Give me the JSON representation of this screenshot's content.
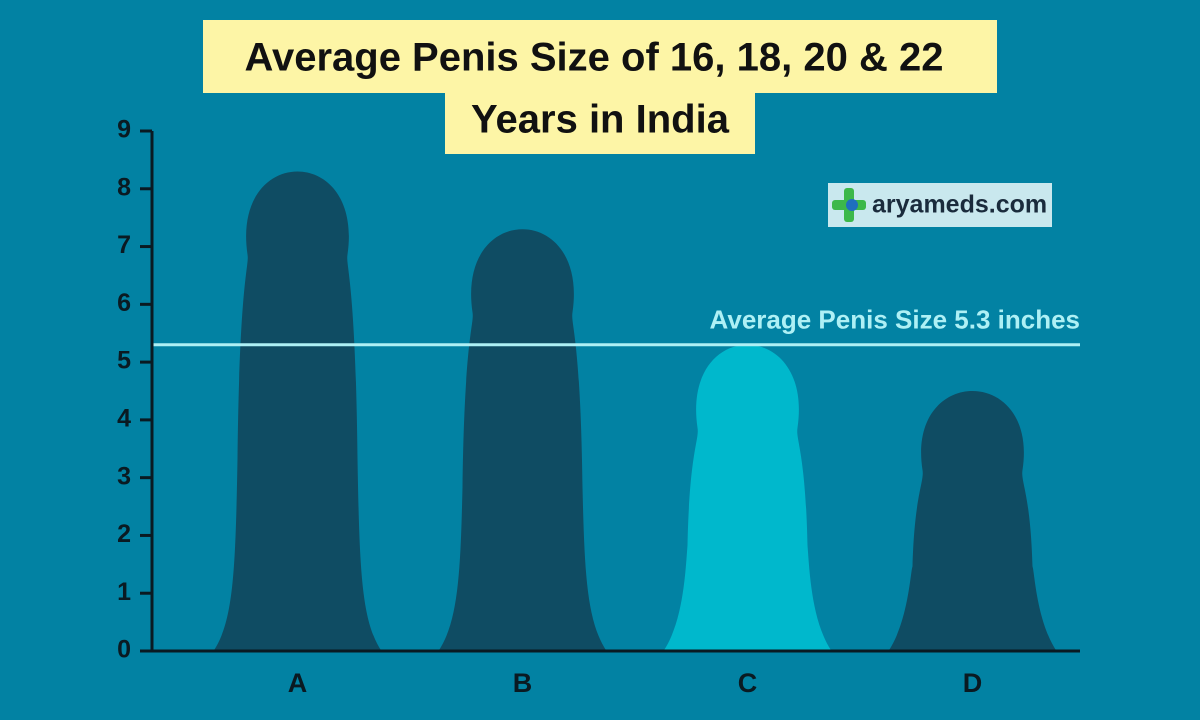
{
  "chart_data": {
    "type": "bar",
    "title": [
      "Average Penis Size of 16, 18, 20 & 22",
      "Years in India"
    ],
    "categories": [
      "A",
      "B",
      "C",
      "D"
    ],
    "values": [
      8.3,
      7.3,
      5.3,
      4.5
    ],
    "colors": [
      "#0f4c63",
      "#0f4c63",
      "#00b8cc",
      "#0f4c63"
    ],
    "ylim": [
      0,
      9
    ],
    "yticks": [
      0,
      1,
      2,
      3,
      4,
      5,
      6,
      7,
      8,
      9
    ],
    "reference_line": {
      "value": 5.3,
      "label": "Average Penis Size 5.3 inches",
      "color": "#aef0f5"
    },
    "watermark": "aryameds.com"
  }
}
